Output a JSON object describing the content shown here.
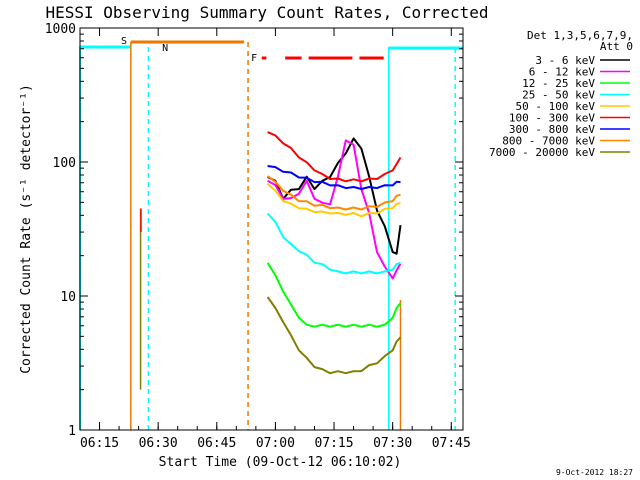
{
  "chart_data": {
    "type": "line",
    "title": "HESSI Observing Summary Count Rates, Corrected",
    "xlabel": "Start Time (09-Oct-12 06:10:02)",
    "ylabel": "Corrected Count Rate (s⁻¹ detector⁻¹)",
    "yscale": "log",
    "ylim": [
      1,
      1000
    ],
    "xlim": [
      "06:10",
      "07:48"
    ],
    "x_ticks": [
      "06:15",
      "06:30",
      "06:45",
      "07:00",
      "07:15",
      "07:30",
      "07:45"
    ],
    "y_ticks": [
      "1",
      "10",
      "100",
      "1000"
    ],
    "timestamp": "9-Oct-2012 18:27",
    "legend": {
      "header": [
        "Det 1,3,5,6,7,9,",
        "Att 0"
      ],
      "position": "right",
      "entries": [
        {
          "label": "3 - 6 keV",
          "color": "#000000"
        },
        {
          "label": "6 - 12 keV",
          "color": "#ff00ff"
        },
        {
          "label": "12 - 25 keV",
          "color": "#00ff00"
        },
        {
          "label": "25 - 50 keV",
          "color": "#00ffff"
        },
        {
          "label": "50 - 100 keV",
          "color": "#ffcc00"
        },
        {
          "label": "100 - 300 keV",
          "color": "#ff0000"
        },
        {
          "label": "300 - 800 keV",
          "color": "#0000ff"
        },
        {
          "label": "800 - 7000 keV",
          "color": "#ff8800"
        },
        {
          "label": "7000 - 20000 keV",
          "color": "#808000"
        }
      ]
    },
    "flags": [
      {
        "label": "S",
        "color": "#ee7700"
      },
      {
        "label": "N",
        "color": "#00ffff"
      },
      {
        "label": "F",
        "color": "#ff0000"
      }
    ],
    "series": [
      {
        "name": "3 - 6 keV",
        "x": [
          48,
          50,
          52,
          54,
          56,
          58,
          60,
          62,
          64,
          66,
          68,
          70,
          72,
          74,
          76,
          78,
          80,
          81,
          82
        ],
        "y": [
          80,
          70,
          55,
          60,
          65,
          75,
          65,
          70,
          80,
          95,
          120,
          145,
          130,
          75,
          45,
          32,
          22,
          20,
          35
        ]
      },
      {
        "name": "6 - 12 keV",
        "x": [
          48,
          50,
          52,
          54,
          56,
          58,
          60,
          62,
          64,
          66,
          68,
          70,
          72,
          74,
          76,
          78,
          80,
          81,
          82
        ],
        "y": [
          75,
          65,
          55,
          52,
          60,
          70,
          55,
          48,
          50,
          75,
          150,
          130,
          65,
          40,
          22,
          16,
          14,
          15,
          18
        ]
      },
      {
        "name": "12 - 25 keV",
        "x": [
          48,
          50,
          52,
          54,
          56,
          58,
          60,
          62,
          64,
          66,
          68,
          70,
          72,
          74,
          76,
          78,
          80,
          81,
          82
        ],
        "y": [
          18,
          14,
          11,
          8.5,
          7,
          6,
          6,
          6,
          6,
          6,
          6,
          6,
          6,
          6,
          6,
          6,
          7,
          8,
          9
        ]
      },
      {
        "name": "25 - 50 keV",
        "x": [
          48,
          50,
          52,
          54,
          56,
          58,
          60,
          62,
          64,
          66,
          68,
          70,
          72,
          74,
          76,
          78,
          80,
          81,
          82
        ],
        "y": [
          42,
          35,
          28,
          24,
          22,
          20,
          18,
          17,
          16,
          15,
          15,
          15,
          15,
          15,
          15,
          15,
          16,
          17,
          18
        ]
      },
      {
        "name": "50 - 100 keV",
        "x": [
          48,
          50,
          52,
          54,
          56,
          58,
          60,
          62,
          64,
          66,
          68,
          70,
          72,
          74,
          76,
          78,
          80,
          81,
          82
        ],
        "y": [
          70,
          60,
          52,
          48,
          46,
          44,
          43,
          42,
          42,
          41,
          41,
          41,
          40,
          41,
          42,
          44,
          46,
          48,
          50
        ]
      },
      {
        "name": "100 - 300 keV",
        "x": [
          48,
          50,
          52,
          54,
          56,
          58,
          60,
          62,
          64,
          66,
          68,
          70,
          72,
          74,
          76,
          78,
          80,
          81,
          82
        ],
        "y": [
          170,
          155,
          140,
          125,
          110,
          98,
          88,
          80,
          76,
          74,
          73,
          73,
          73,
          74,
          76,
          80,
          88,
          95,
          110
        ]
      },
      {
        "name": "300 - 800 keV",
        "x": [
          48,
          50,
          52,
          54,
          56,
          58,
          60,
          62,
          64,
          66,
          68,
          70,
          72,
          74,
          76,
          78,
          80,
          81,
          82
        ],
        "y": [
          95,
          90,
          86,
          82,
          78,
          75,
          72,
          70,
          68,
          66,
          65,
          64,
          64,
          64,
          65,
          66,
          68,
          70,
          72
        ]
      },
      {
        "name": "800 - 7000 keV",
        "x": [
          48,
          50,
          52,
          54,
          56,
          58,
          60,
          62,
          64,
          66,
          68,
          70,
          72,
          74,
          76,
          78,
          80,
          81,
          82
        ],
        "y": [
          80,
          70,
          62,
          56,
          52,
          50,
          48,
          47,
          46,
          45,
          45,
          45,
          45,
          46,
          47,
          49,
          52,
          55,
          58
        ]
      },
      {
        "name": "7000 - 20000 keV",
        "x": [
          48,
          50,
          52,
          54,
          56,
          58,
          60,
          62,
          64,
          66,
          68,
          70,
          72,
          74,
          76,
          78,
          80,
          81,
          82
        ],
        "y": [
          10,
          8,
          6.5,
          5,
          4,
          3.4,
          3,
          2.8,
          2.7,
          2.7,
          2.7,
          2.7,
          2.8,
          3,
          3.2,
          3.5,
          4,
          4.5,
          5
        ]
      }
    ]
  }
}
